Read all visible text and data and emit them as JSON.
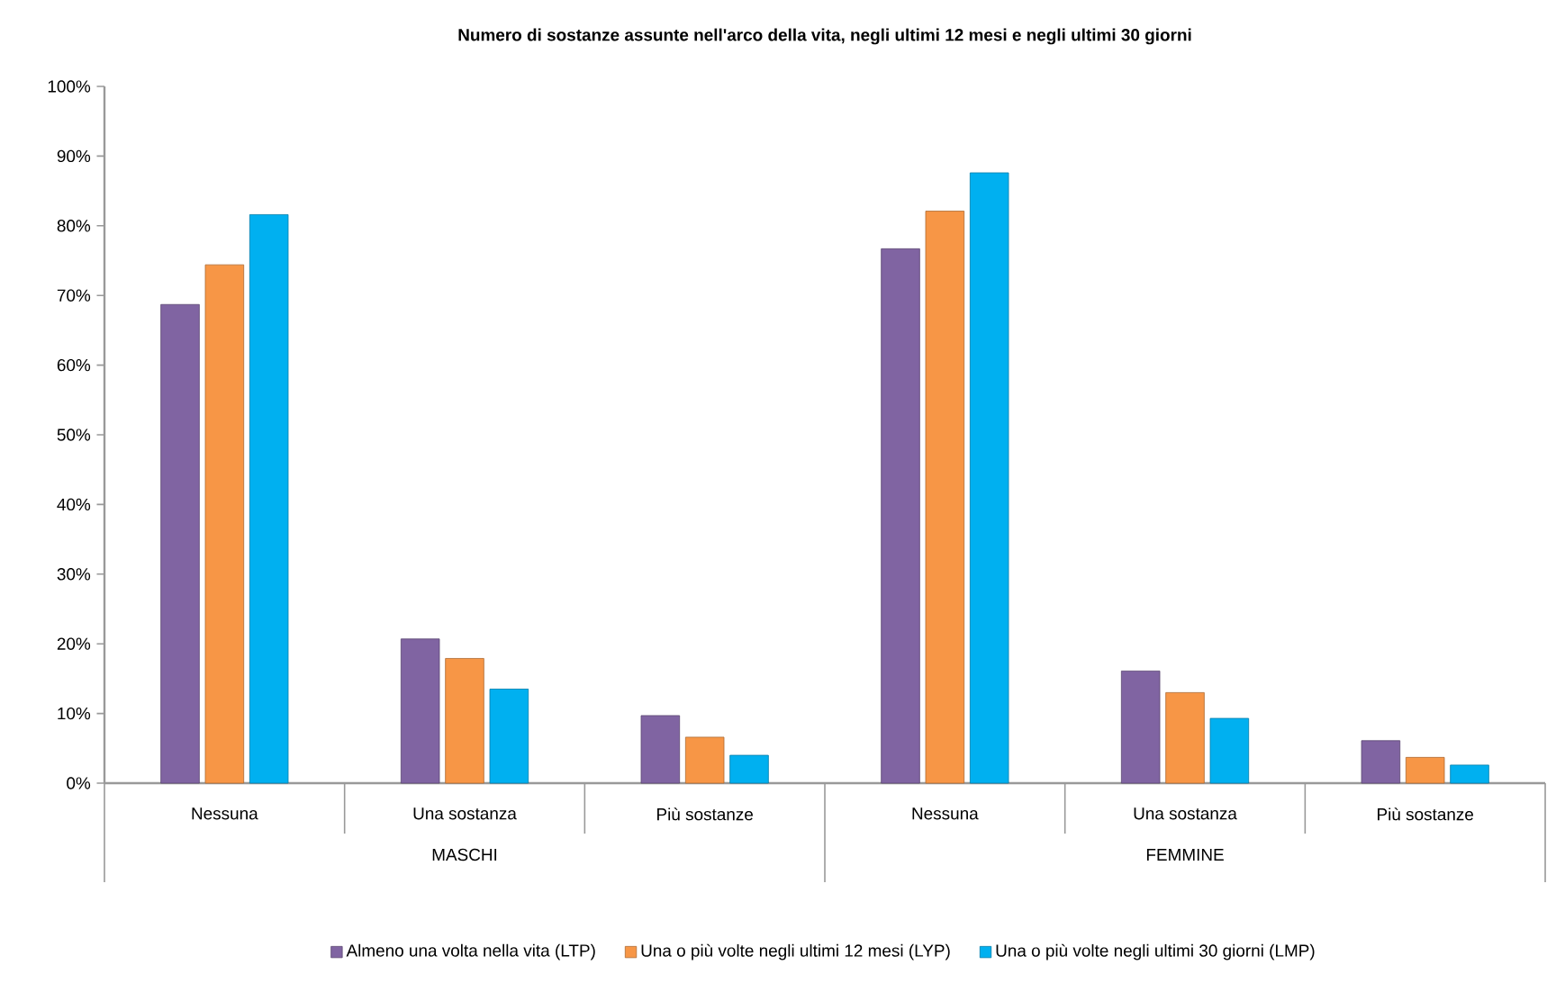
{
  "chart_data": {
    "type": "bar",
    "title": "Numero di sostanze assunte nell'arco della vita, negli ultimi 12 mesi e negli ultimi 30 giorni",
    "categories": [
      "Nessuna",
      "Una sostanza",
      "Più sostanze",
      "Nessuna",
      "Una sostanza",
      "Più sostanze"
    ],
    "annotations": [
      "MASCHI",
      "FEMMINE"
    ],
    "series": [
      {
        "name": "Almeno una volta nella vita (LTP)",
        "color": "#8064a2",
        "values": [
          68.7,
          20.7,
          9.7,
          76.7,
          16.1,
          6.1
        ]
      },
      {
        "name": "Una o più volte negli ultimi 12 mesi (LYP)",
        "color": "#f79646",
        "values": [
          74.4,
          17.9,
          6.6,
          82.1,
          13.0,
          3.7
        ]
      },
      {
        "name": "Una o più volte negli ultimi 30 giorni (LMP)",
        "color": "#00b0f0",
        "values": [
          81.6,
          13.5,
          4.0,
          87.6,
          9.3,
          2.6
        ]
      }
    ],
    "ylim": [
      0,
      100
    ],
    "yticks": [
      {
        "value": 0,
        "label": "0%"
      },
      {
        "value": 10,
        "label": "10%"
      },
      {
        "value": 20,
        "label": "20%"
      },
      {
        "value": 30,
        "label": "30%"
      },
      {
        "value": 40,
        "label": "40%"
      },
      {
        "value": 50,
        "label": "50%"
      },
      {
        "value": 60,
        "label": "60%"
      },
      {
        "value": 70,
        "label": "70%"
      },
      {
        "value": 80,
        "label": "80%"
      },
      {
        "value": 90,
        "label": "90%"
      },
      {
        "value": 100,
        "label": "100%"
      }
    ],
    "legend": "bottom"
  }
}
